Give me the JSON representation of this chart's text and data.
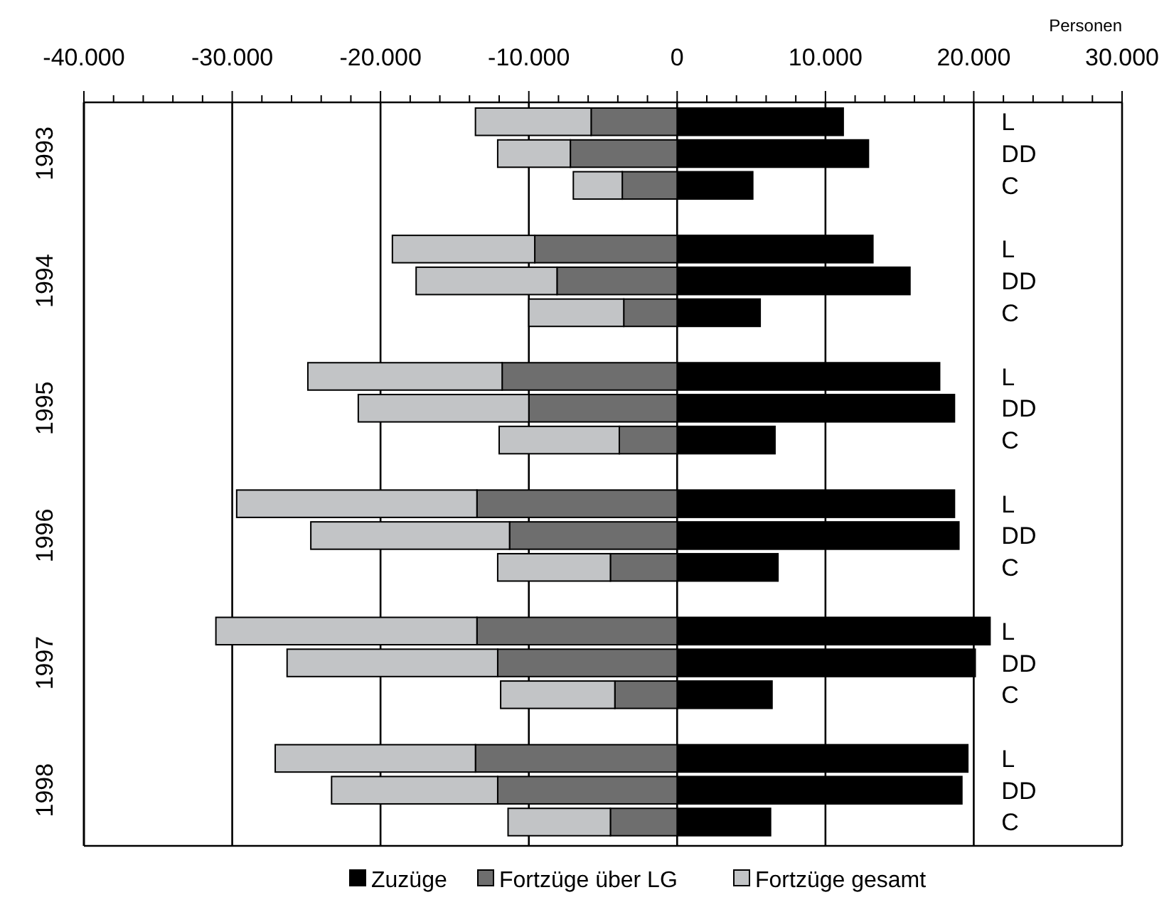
{
  "chart_data": {
    "type": "bar",
    "orientation": "horizontal",
    "stacked": true,
    "categories": [
      "L",
      "DD",
      "C",
      "L",
      "DD",
      "C",
      "L",
      "DD",
      "C",
      "L",
      "DD",
      "C",
      "L",
      "DD",
      "C",
      "L",
      "DD",
      "C"
    ],
    "series": [
      {
        "name": "Zuzüge",
        "color": "#000000",
        "values": [
          11200,
          12900,
          5100,
          13200,
          15700,
          5600,
          17700,
          18700,
          6600,
          18700,
          19000,
          6800,
          21100,
          20100,
          6400,
          19600,
          19200,
          6300
        ]
      },
      {
        "name": "Fortzüge über LG",
        "color": "#6e6e6e",
        "values": [
          -5800,
          -7200,
          -3700,
          -9600,
          -8100,
          -3600,
          -11800,
          -10000,
          -3900,
          -13500,
          -11300,
          -4500,
          -13500,
          -12100,
          -4200,
          -13600,
          -12100,
          -4500
        ]
      },
      {
        "name": "Fortzüge gesamt",
        "color": "#c2c4c6",
        "values": [
          -7800,
          -4900,
          -3300,
          -9600,
          -9500,
          -6400,
          -13100,
          -11500,
          -8100,
          -16200,
          -13400,
          -7600,
          -17600,
          -14200,
          -7700,
          -13500,
          -11200,
          -6900
        ]
      }
    ],
    "annotations": [
      "1993",
      "1994",
      "1995",
      "1996",
      "1997",
      "1998"
    ],
    "xlabel": "Personen",
    "xlim": [
      -40000,
      30000
    ],
    "xticks": [
      {
        "value": -40000,
        "label": "-40.000"
      },
      {
        "value": -38000,
        "label": null
      },
      {
        "value": -36000,
        "label": null
      },
      {
        "value": -34000,
        "label": null
      },
      {
        "value": -32000,
        "label": null
      },
      {
        "value": -30000,
        "label": "-30.000"
      },
      {
        "value": -28000,
        "label": null
      },
      {
        "value": -26000,
        "label": null
      },
      {
        "value": -24000,
        "label": null
      },
      {
        "value": -22000,
        "label": null
      },
      {
        "value": -20000,
        "label": "-20.000"
      },
      {
        "value": -18000,
        "label": null
      },
      {
        "value": -16000,
        "label": null
      },
      {
        "value": -14000,
        "label": null
      },
      {
        "value": -12000,
        "label": null
      },
      {
        "value": -10000,
        "label": "-10.000"
      },
      {
        "value": -8000,
        "label": null
      },
      {
        "value": -6000,
        "label": null
      },
      {
        "value": -4000,
        "label": null
      },
      {
        "value": -2000,
        "label": null
      },
      0,
      {
        "value": 2000,
        "label": null
      },
      {
        "value": 4000,
        "label": null
      },
      {
        "value": 6000,
        "label": null
      },
      {
        "value": 8000,
        "label": null
      },
      {
        "value": 10000,
        "label": "10.000"
      },
      {
        "value": 12000,
        "label": null
      },
      {
        "value": 14000,
        "label": null
      },
      {
        "value": 16000,
        "label": null
      },
      {
        "value": 18000,
        "label": null
      },
      {
        "value": 20000,
        "label": "20.000"
      },
      {
        "value": 22000,
        "label": null
      },
      {
        "value": 24000,
        "label": null
      },
      {
        "value": 26000,
        "label": null
      },
      {
        "value": 28000,
        "label": null
      },
      {
        "value": 30000,
        "label": "30.000"
      }
    ],
    "grid": "x",
    "legend": "bottom"
  }
}
